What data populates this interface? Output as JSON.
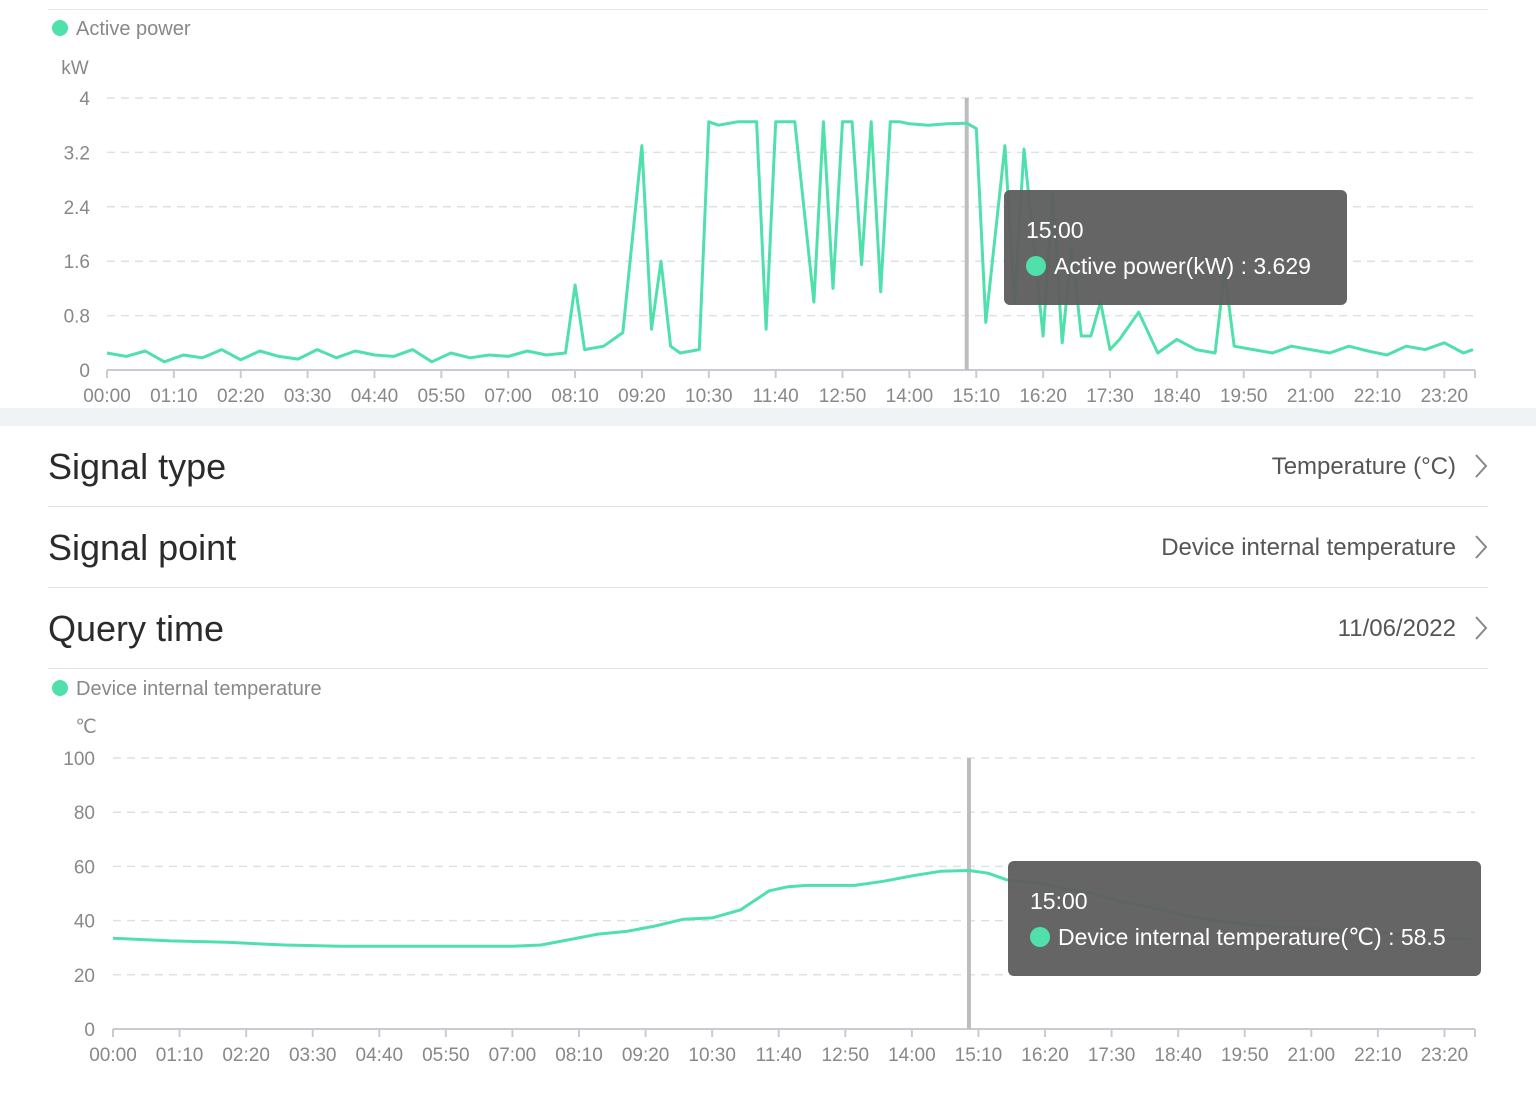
{
  "rows": [
    {
      "label": "Signal type",
      "value": "Temperature (°C)"
    },
    {
      "label": "Signal point",
      "value": "Device internal temperature"
    },
    {
      "label": "Query time",
      "value": "11/06/2022"
    }
  ],
  "colors": {
    "series": "#4fe0ac",
    "tooltip_bg": "#5f5f5f",
    "grid": "#dde1e6"
  },
  "chart_data": [
    {
      "type": "line",
      "legend": "Active power",
      "unit_label": "kW",
      "y_ticks": [
        "0",
        "0.8",
        "1.6",
        "2.4",
        "3.2",
        "4"
      ],
      "ylim": [
        0,
        4
      ],
      "x_ticks": [
        "00:00",
        "01:10",
        "02:20",
        "03:30",
        "04:40",
        "05:50",
        "07:00",
        "08:10",
        "09:20",
        "10:30",
        "11:40",
        "12:50",
        "14:00",
        "15:10",
        "16:20",
        "17:30",
        "18:40",
        "19:50",
        "21:00",
        "22:10",
        "23:20"
      ],
      "x": [
        "00:00",
        "00:20",
        "00:40",
        "01:00",
        "01:20",
        "01:40",
        "02:00",
        "02:20",
        "02:40",
        "03:00",
        "03:20",
        "03:40",
        "04:00",
        "04:20",
        "04:40",
        "05:00",
        "05:20",
        "05:40",
        "06:00",
        "06:20",
        "06:40",
        "07:00",
        "07:20",
        "07:40",
        "08:00",
        "08:10",
        "08:20",
        "08:40",
        "09:00",
        "09:20",
        "09:30",
        "09:40",
        "09:50",
        "10:00",
        "10:20",
        "10:30",
        "10:40",
        "11:00",
        "11:20",
        "11:30",
        "11:40",
        "12:00",
        "12:20",
        "12:30",
        "12:40",
        "12:50",
        "13:00",
        "13:10",
        "13:20",
        "13:30",
        "13:40",
        "13:50",
        "14:00",
        "14:20",
        "14:40",
        "15:00",
        "15:10",
        "15:20",
        "15:40",
        "15:50",
        "16:00",
        "16:20",
        "16:30",
        "16:40",
        "16:50",
        "17:00",
        "17:10",
        "17:20",
        "17:30",
        "17:40",
        "18:00",
        "18:20",
        "18:40",
        "19:00",
        "19:20",
        "19:30",
        "19:40",
        "20:00",
        "20:20",
        "20:40",
        "21:00",
        "21:20",
        "21:40",
        "22:00",
        "22:20",
        "22:40",
        "23:00",
        "23:20",
        "23:40",
        "23:50"
      ],
      "series": [
        {
          "name": "Active power(kW)",
          "values": [
            0.25,
            0.2,
            0.28,
            0.12,
            0.22,
            0.18,
            0.3,
            0.15,
            0.28,
            0.2,
            0.16,
            0.3,
            0.18,
            0.28,
            0.22,
            0.2,
            0.3,
            0.12,
            0.25,
            0.18,
            0.22,
            0.2,
            0.28,
            0.22,
            0.25,
            1.25,
            0.3,
            0.35,
            0.55,
            3.3,
            0.6,
            1.6,
            0.35,
            0.25,
            0.3,
            3.65,
            3.6,
            3.65,
            3.65,
            0.6,
            3.65,
            3.65,
            1.0,
            3.65,
            1.2,
            3.65,
            3.65,
            1.55,
            3.65,
            1.15,
            3.65,
            3.65,
            3.62,
            3.6,
            3.62,
            3.629,
            3.55,
            0.7,
            3.3,
            1.0,
            3.25,
            0.5,
            2.6,
            0.4,
            1.8,
            0.5,
            0.5,
            1.0,
            0.3,
            0.45,
            0.85,
            0.25,
            0.45,
            0.3,
            0.25,
            1.45,
            0.35,
            0.3,
            0.25,
            0.35,
            0.3,
            0.25,
            0.35,
            0.28,
            0.22,
            0.35,
            0.3,
            0.4,
            0.25,
            0.3
          ]
        }
      ],
      "tooltip": {
        "time": "15:00",
        "label": "Active power(kW) : 3.629",
        "at": "15:00"
      }
    },
    {
      "type": "line",
      "legend": "Device internal temperature",
      "unit_label": "℃",
      "y_ticks": [
        "0",
        "20",
        "40",
        "60",
        "80",
        "100"
      ],
      "ylim": [
        0,
        100
      ],
      "x_ticks": [
        "00:00",
        "01:10",
        "02:20",
        "03:30",
        "04:40",
        "05:50",
        "07:00",
        "08:10",
        "09:20",
        "10:30",
        "11:40",
        "12:50",
        "14:00",
        "15:10",
        "16:20",
        "17:30",
        "18:40",
        "19:50",
        "21:00",
        "22:10",
        "23:20"
      ],
      "x": [
        "00:00",
        "01:00",
        "02:00",
        "03:00",
        "04:00",
        "05:00",
        "06:00",
        "07:00",
        "07:30",
        "08:00",
        "08:30",
        "09:00",
        "09:30",
        "10:00",
        "10:30",
        "11:00",
        "11:30",
        "11:50",
        "12:10",
        "12:30",
        "13:00",
        "13:30",
        "14:00",
        "14:30",
        "15:00",
        "15:20",
        "15:40",
        "16:10",
        "16:40",
        "17:10",
        "17:40",
        "18:10",
        "18:40",
        "19:10",
        "19:40",
        "20:10",
        "21:00",
        "22:00",
        "23:00",
        "23:50"
      ],
      "series": [
        {
          "name": "Device internal temperature(℃)",
          "values": [
            33.5,
            32.5,
            32,
            31,
            30.5,
            30.5,
            30.5,
            30.5,
            31,
            33,
            35,
            36,
            38,
            40.5,
            41,
            44,
            51,
            52.5,
            53,
            53,
            53,
            54.5,
            56.5,
            58.2,
            58.5,
            57.5,
            55,
            54,
            52,
            50,
            47,
            45,
            42.5,
            40.5,
            39,
            38,
            37,
            36,
            34,
            33
          ]
        }
      ],
      "tooltip": {
        "time": "15:00",
        "label": "Device internal temperature(℃) : 58.5",
        "at": "15:00"
      }
    }
  ]
}
